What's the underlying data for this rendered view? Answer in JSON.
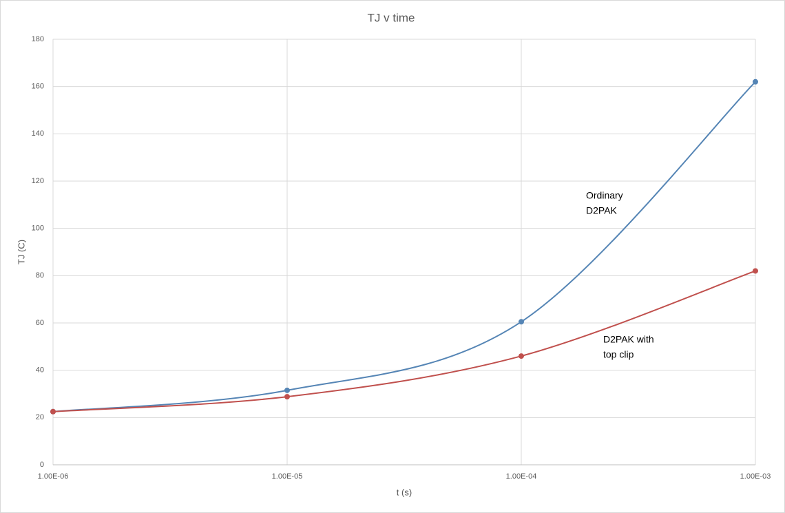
{
  "chart_data": {
    "type": "line",
    "title": "TJ v time",
    "x_label": "t (s)",
    "y_label": "TJ (C)",
    "x": [
      1e-06,
      1e-05,
      0.0001,
      0.001
    ],
    "xscale": "log",
    "xlim": [
      1e-06,
      0.001
    ],
    "xticks": [
      {
        "value": 1e-06,
        "label": "1.00E-06"
      },
      {
        "value": 1e-05,
        "label": "1.00E-05"
      },
      {
        "value": 0.0001,
        "label": "1.00E-04"
      },
      {
        "value": 0.001,
        "label": "1.00E-03"
      }
    ],
    "ylim": [
      0,
      180
    ],
    "yticks": [
      0,
      20,
      40,
      60,
      80,
      100,
      120,
      140,
      160,
      180
    ],
    "grid": true,
    "smooth": true,
    "series": [
      {
        "color": "#5585b5",
        "values": [
          22.5,
          31.5,
          60.5,
          162
        ]
      },
      {
        "color": "#c0504d",
        "values": [
          22.5,
          28.8,
          46,
          82
        ]
      }
    ],
    "annotations": [
      {
        "lines": [
          "Ordinary",
          "D2PAK"
        ]
      },
      {
        "lines": [
          "D2PAK with",
          "top clip"
        ]
      }
    ]
  }
}
